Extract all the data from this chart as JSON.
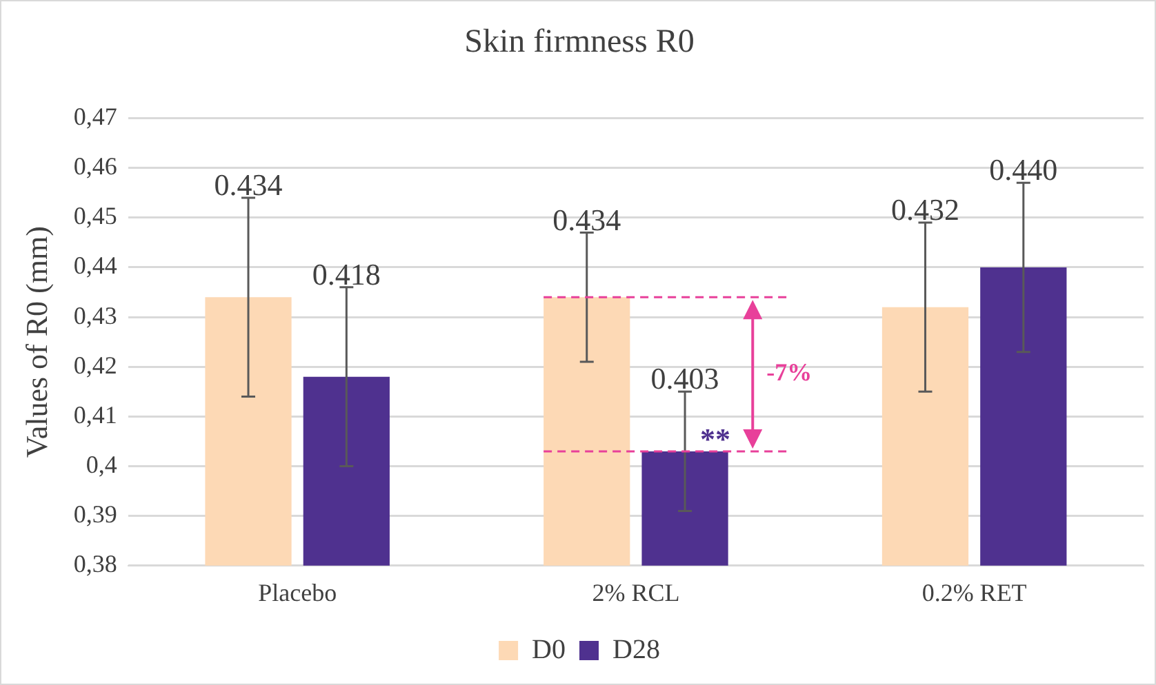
{
  "chart_data": {
    "type": "bar",
    "title": "Skin firmness R0",
    "ylabel": "Values of R0 (mm)",
    "categories": [
      "Placebo",
      "2% RCL",
      "0.2% RET"
    ],
    "series": [
      {
        "name": "D0",
        "color": "#fdd9b5",
        "values": [
          0.434,
          0.434,
          0.432
        ],
        "errors": [
          0.02,
          0.013,
          0.017
        ],
        "value_labels": [
          "0.434",
          "0.434",
          "0.432"
        ]
      },
      {
        "name": "D28",
        "color": "#4f318f",
        "values": [
          0.418,
          0.403,
          0.44
        ],
        "errors": [
          0.018,
          0.012,
          0.017
        ],
        "value_labels": [
          "0.418",
          "0.403",
          "0.440"
        ]
      }
    ],
    "ylim": [
      0.38,
      0.47
    ],
    "yticks": [
      {
        "value": 0.38,
        "label": "0,38"
      },
      {
        "value": 0.39,
        "label": "0,39"
      },
      {
        "value": 0.4,
        "label": "0,4"
      },
      {
        "value": 0.41,
        "label": "0,41"
      },
      {
        "value": 0.42,
        "label": "0,42"
      },
      {
        "value": 0.43,
        "label": "0,43"
      },
      {
        "value": 0.44,
        "label": "0,44"
      },
      {
        "value": 0.45,
        "label": "0,45"
      },
      {
        "value": 0.46,
        "label": "0,46"
      },
      {
        "value": 0.47,
        "label": "0,47"
      }
    ],
    "ref_lines": [
      {
        "axis": "y",
        "value": 0.434,
        "color": "#e8409a",
        "line_style": "dashed"
      },
      {
        "axis": "y",
        "value": 0.403,
        "color": "#e8409a",
        "line_style": "dashed"
      }
    ],
    "annotations": [
      {
        "text": "**",
        "x": "2% RCL",
        "y": 0.403
      },
      "-7%"
    ],
    "grid": "y",
    "legend": "bottom"
  }
}
